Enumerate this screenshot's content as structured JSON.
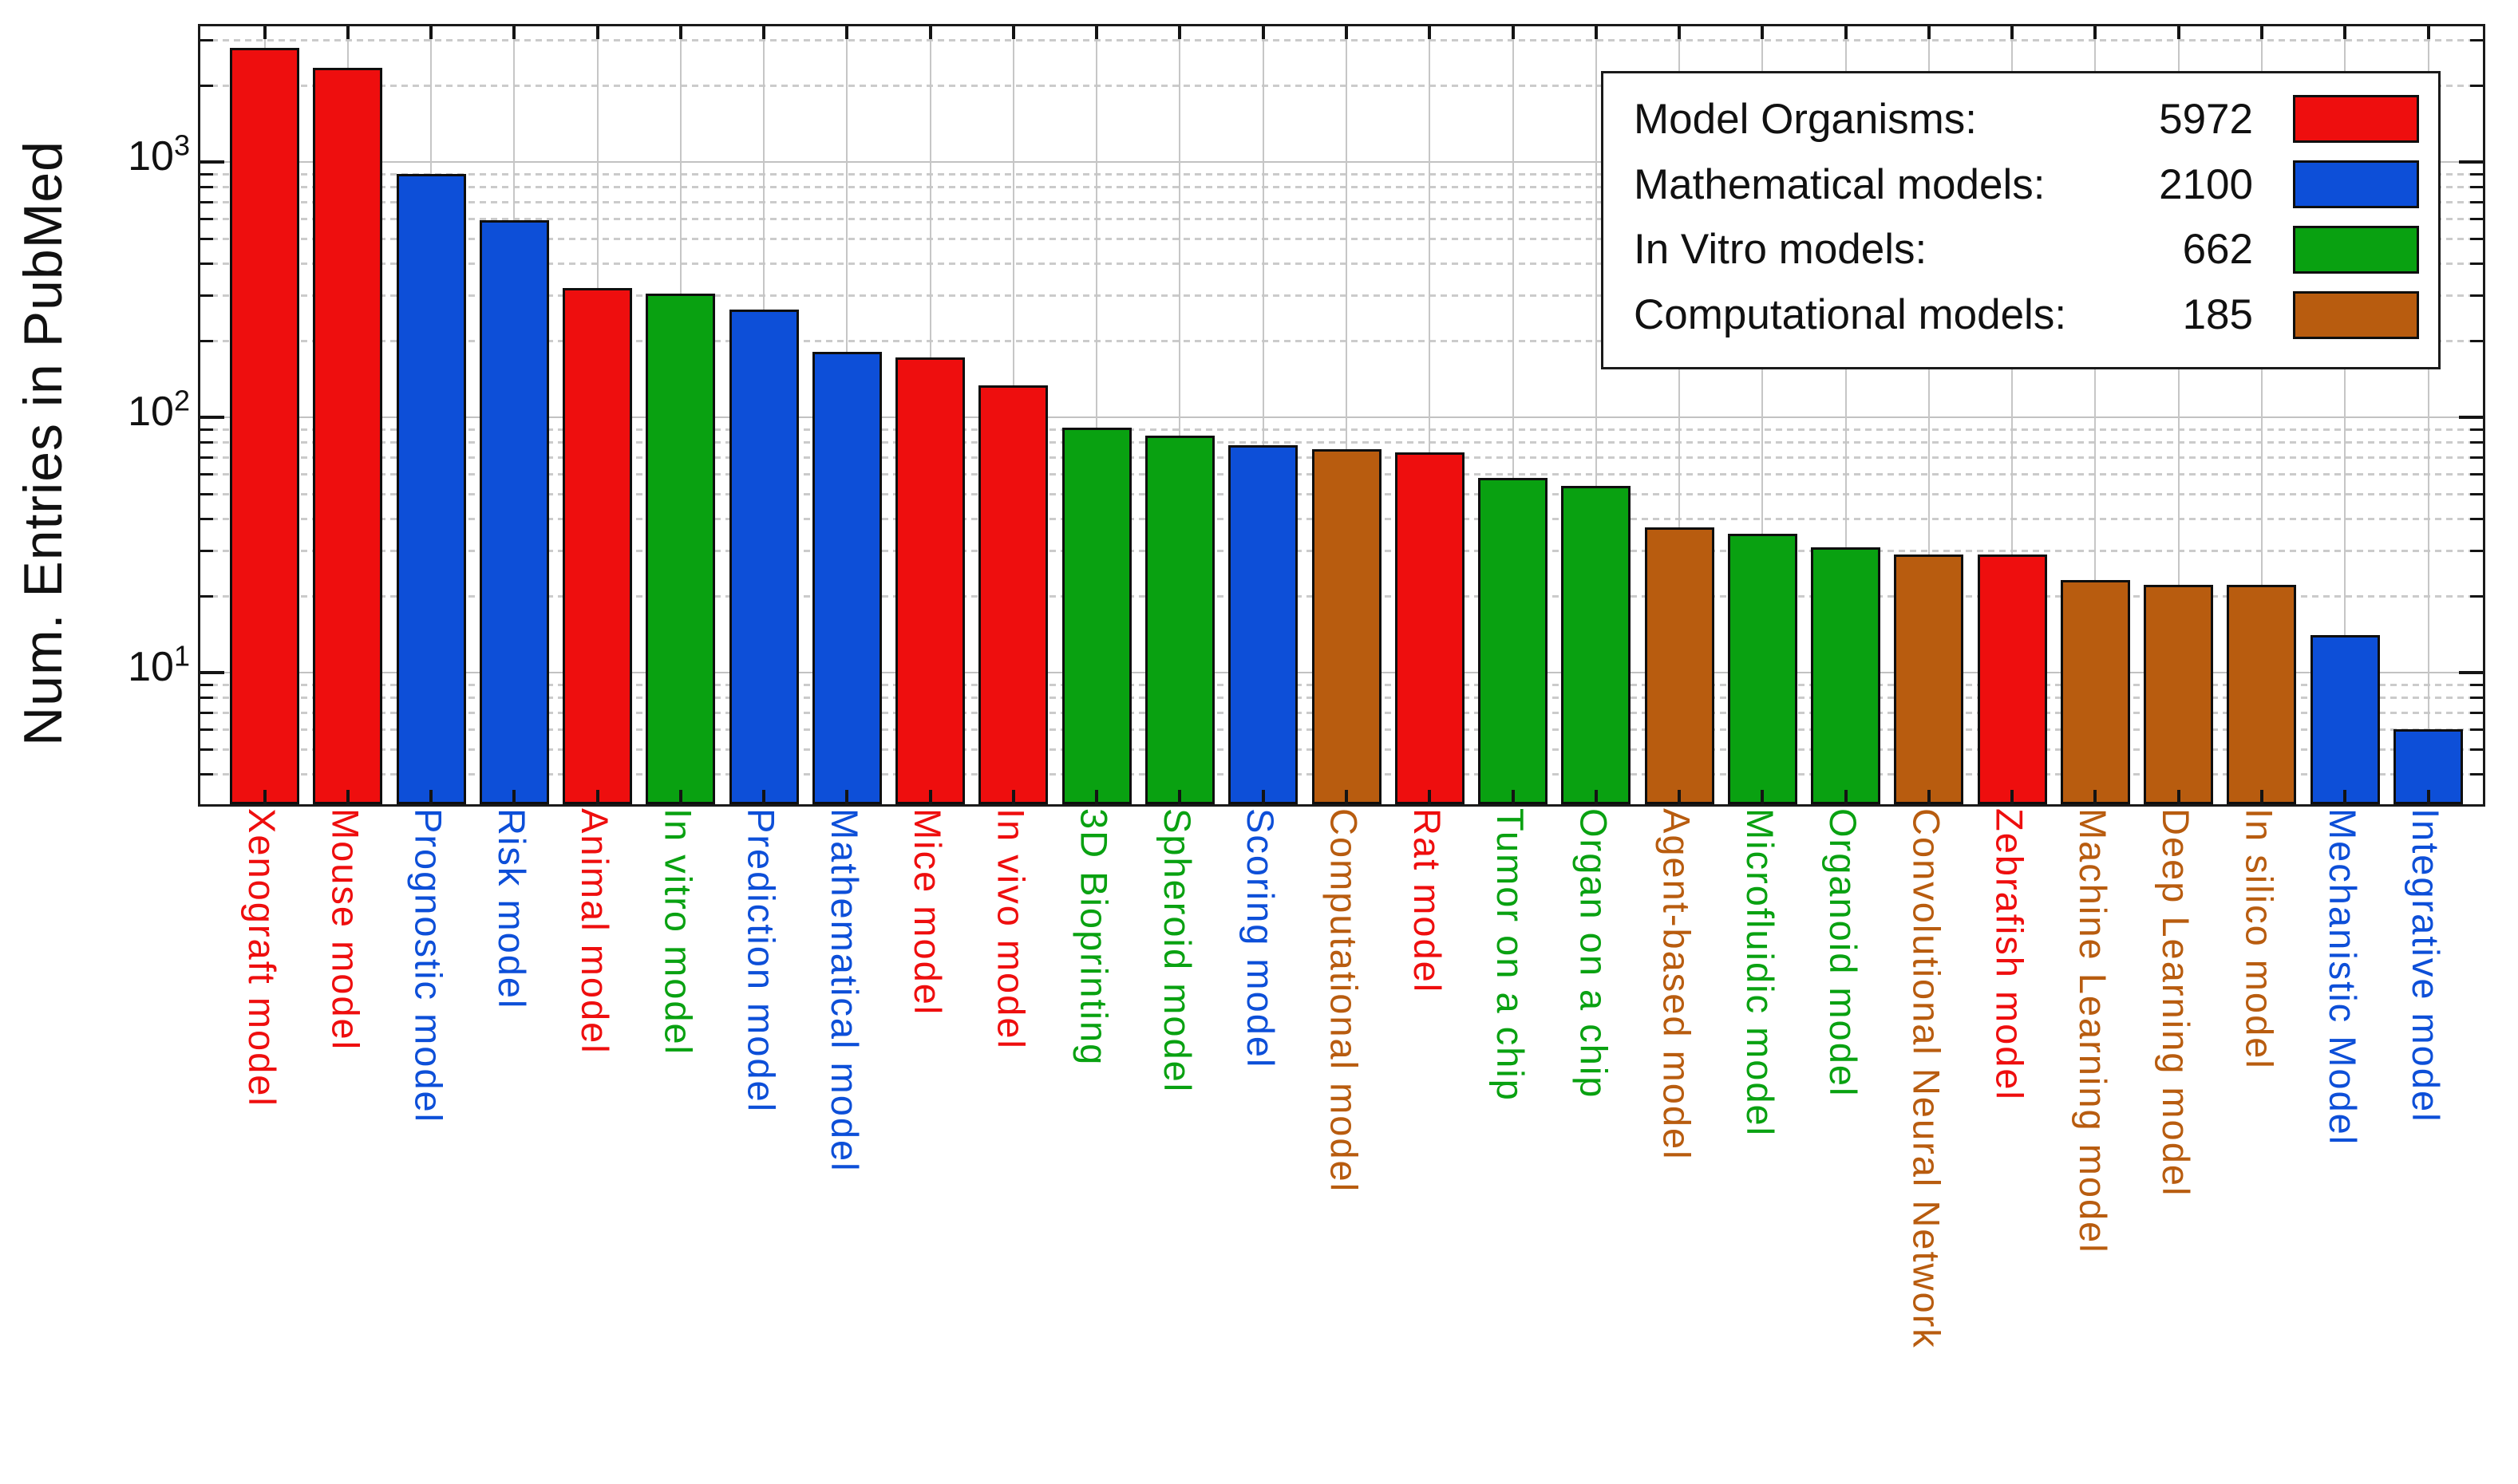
{
  "figure": {
    "ylabel": "Num. Entries in PubMed"
  },
  "chart_data": {
    "type": "bar",
    "title": "",
    "xlabel": "",
    "ylabel": "Num. Entries in PubMed",
    "yscale": "log",
    "ylim": [
      3,
      3200
    ],
    "ytick_exponents": [
      1,
      2,
      3
    ],
    "grid": true,
    "legend_position": "top-right",
    "groups": {
      "organisms": {
        "label": "Model Organisms:",
        "total": "5972",
        "color": "#EE0E0E"
      },
      "mathematical": {
        "label": "Mathematical models:",
        "total": "2100",
        "color": "#0D4FD8"
      },
      "invitro": {
        "label": "In Vitro models:",
        "total": "662",
        "color": "#09A111"
      },
      "computational": {
        "label": "Computational models:",
        "total": "185",
        "color": "#B85C0F"
      }
    },
    "legend_order": [
      "organisms",
      "mathematical",
      "invitro",
      "computational"
    ],
    "bars": [
      {
        "label": "Xenograft model",
        "value": 2800,
        "group": "organisms"
      },
      {
        "label": "Mouse model",
        "value": 2330,
        "group": "organisms"
      },
      {
        "label": "Prognostic model",
        "value": 900,
        "group": "mathematical"
      },
      {
        "label": "Risk model",
        "value": 590,
        "group": "mathematical"
      },
      {
        "label": "Animal model",
        "value": 320,
        "group": "organisms"
      },
      {
        "label": "In vitro model",
        "value": 305,
        "group": "invitro"
      },
      {
        "label": "Prediction model",
        "value": 265,
        "group": "mathematical"
      },
      {
        "label": "Mathematical model",
        "value": 180,
        "group": "mathematical"
      },
      {
        "label": "Mice model",
        "value": 172,
        "group": "organisms"
      },
      {
        "label": "In vivo model",
        "value": 133,
        "group": "organisms"
      },
      {
        "label": "3D Bioprinting",
        "value": 91,
        "group": "invitro"
      },
      {
        "label": "Spheroid model",
        "value": 85,
        "group": "invitro"
      },
      {
        "label": "Scoring model",
        "value": 78,
        "group": "mathematical"
      },
      {
        "label": "Computational model",
        "value": 75,
        "group": "computational"
      },
      {
        "label": "Rat model",
        "value": 73,
        "group": "organisms"
      },
      {
        "label": "Tumor on a chip",
        "value": 58,
        "group": "invitro"
      },
      {
        "label": "Organ on a chip",
        "value": 54,
        "group": "invitro"
      },
      {
        "label": "Agent-based model",
        "value": 37,
        "group": "computational"
      },
      {
        "label": "Microfluidic model",
        "value": 35,
        "group": "invitro"
      },
      {
        "label": "Organoid model",
        "value": 31,
        "group": "invitro"
      },
      {
        "label": "Convolutional Neural Network",
        "value": 29,
        "group": "computational"
      },
      {
        "label": "Zebrafish model",
        "value": 29,
        "group": "organisms"
      },
      {
        "label": "Machine Learning model",
        "value": 23,
        "group": "computational"
      },
      {
        "label": "Deep Learning model",
        "value": 22,
        "group": "computational"
      },
      {
        "label": "In silico model",
        "value": 22,
        "group": "computational"
      },
      {
        "label": "Mechanistic Model",
        "value": 14,
        "group": "mathematical"
      },
      {
        "label": "Integrative model",
        "value": 6,
        "group": "mathematical"
      }
    ]
  }
}
